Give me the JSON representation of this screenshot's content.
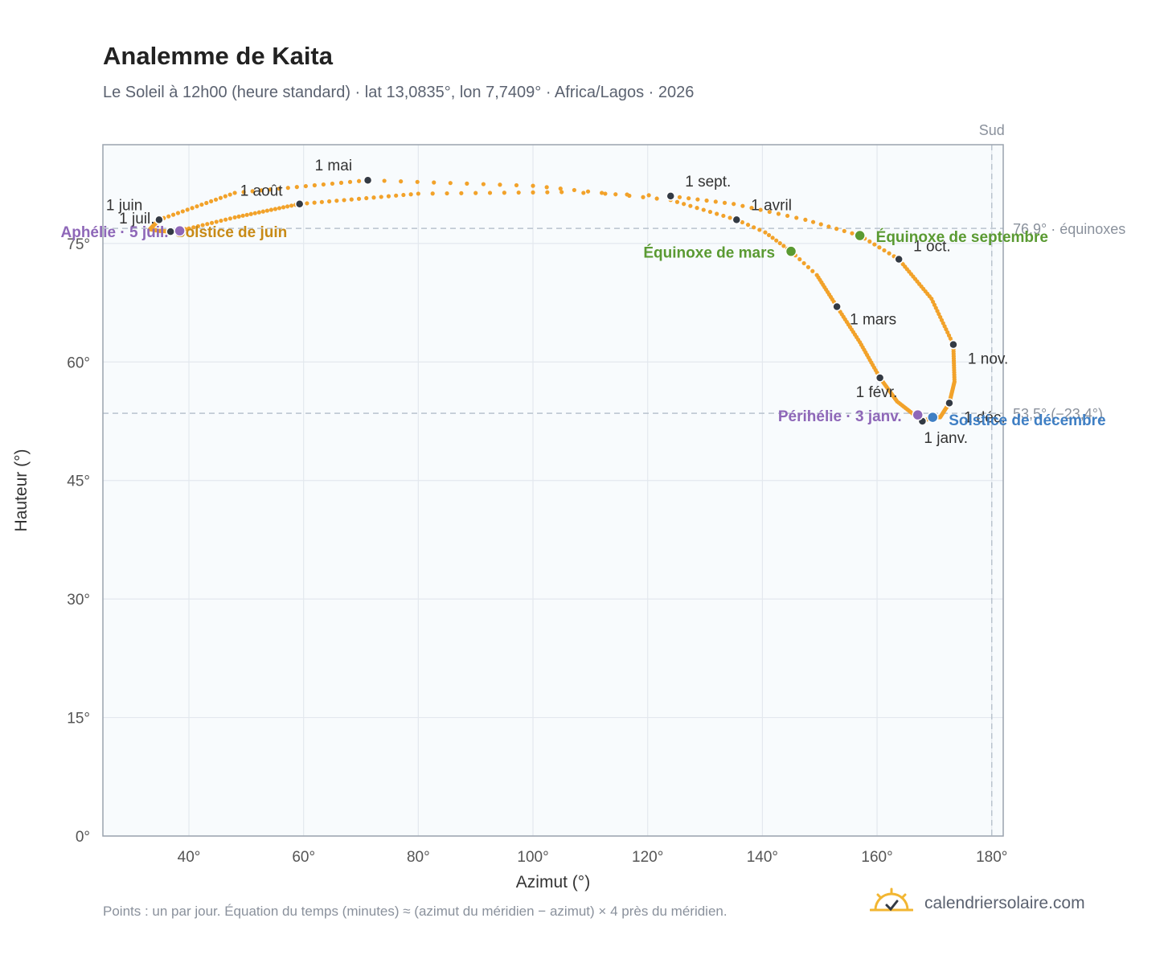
{
  "title": "Analemme de Kaita",
  "subtitle": "Le Soleil à 12h00 (heure standard) · lat 13,0835°, lon 7,7409° · Africa/Lagos · 2026",
  "footnote": "Points : un par jour. Équation du temps (minutes) ≈ (azimut du méridien − azimut) × 4 près du méridien.",
  "brand": {
    "name": "calendriersolaire.com",
    "logo_icon": "sun-check-icon"
  },
  "colors": {
    "curve": "#f2a22a",
    "month_marker": "#333a44",
    "equinox": "#5a9a32",
    "aphelion": "#8e67b8",
    "solstice_june": "#c88a16",
    "solstice_dec": "#3f7fc4",
    "plot_bg": "#f8fbfd",
    "grid": "#e3e8ee",
    "ref_line": "#b9c3ce"
  },
  "chart_data": {
    "type": "scatter",
    "xlabel": "Azimut (°)",
    "ylabel": "Hauteur (°)",
    "xlim": [
      25,
      182
    ],
    "ylim": [
      0,
      87.5
    ],
    "xticks": [
      40,
      60,
      80,
      100,
      120,
      140,
      160,
      180
    ],
    "yticks": [
      0,
      15,
      30,
      45,
      60,
      75
    ],
    "x_tick_labels": [
      "40°",
      "60°",
      "80°",
      "100°",
      "120°",
      "140°",
      "160°",
      "180°"
    ],
    "y_tick_labels": [
      "0°",
      "15°",
      "30°",
      "45°",
      "60°",
      "75°"
    ],
    "grid": true,
    "south_line": {
      "x": 180,
      "label": "Sud"
    },
    "reference_lines": [
      {
        "y": 76.9,
        "label": "76,9° · équinoxes"
      },
      {
        "y": 53.5,
        "label": "53,5° (−23,4°)"
      }
    ],
    "month_markers": [
      {
        "label": "1 janv.",
        "x": 167.9,
        "y": 52.5
      },
      {
        "label": "1 févr.",
        "x": 160.5,
        "y": 58.0
      },
      {
        "label": "1 mars",
        "x": 153.0,
        "y": 67.0
      },
      {
        "label": "1 avril",
        "x": 135.5,
        "y": 78.0
      },
      {
        "label": "1 mai",
        "x": 71.2,
        "y": 83.0
      },
      {
        "label": "1 juin",
        "x": 34.8,
        "y": 78.0
      },
      {
        "label": "1 juil.",
        "x": 36.8,
        "y": 76.5
      },
      {
        "label": "1 août",
        "x": 59.3,
        "y": 80.0
      },
      {
        "label": "1 sept.",
        "x": 124.0,
        "y": 81.0
      },
      {
        "label": "1 oct.",
        "x": 163.8,
        "y": 73.0
      },
      {
        "label": "1 nov.",
        "x": 173.3,
        "y": 62.2
      },
      {
        "label": "1 déc.",
        "x": 172.6,
        "y": 54.8
      }
    ],
    "events": [
      {
        "label": "Équinoxe de mars",
        "kind": "equinox",
        "x": 145.0,
        "y": 74.0
      },
      {
        "label": "Équinoxe de septembre",
        "kind": "equinox",
        "x": 157.0,
        "y": 76.0
      },
      {
        "label": "Solstice de juin",
        "kind": "solstice_june",
        "x": 34.8,
        "y": 76.6
      },
      {
        "label": "Solstice de décembre",
        "kind": "solstice_dec",
        "x": 169.7,
        "y": 53.0
      },
      {
        "label": "Aphélie · 5 juil.",
        "kind": "aphelion",
        "x": 38.4,
        "y": 76.6
      },
      {
        "label": "Périhélie · 3 janv.",
        "kind": "aphelion",
        "x": 167.1,
        "y": 53.3
      }
    ],
    "curve_anchors": [
      [
        167.9,
        52.5
      ],
      [
        163.5,
        55.0
      ],
      [
        160.5,
        58.0
      ],
      [
        157.0,
        62.5
      ],
      [
        153.0,
        67.0
      ],
      [
        149.5,
        71.0
      ],
      [
        145.0,
        74.0
      ],
      [
        140.5,
        76.4
      ],
      [
        135.5,
        78.0
      ],
      [
        124.0,
        80.5
      ],
      [
        100.0,
        82.3
      ],
      [
        71.2,
        83.0
      ],
      [
        48.0,
        81.4
      ],
      [
        34.8,
        78.0
      ],
      [
        33.2,
        76.8
      ],
      [
        34.8,
        76.6
      ],
      [
        36.8,
        76.5
      ],
      [
        40.0,
        76.9
      ],
      [
        48.0,
        78.3
      ],
      [
        59.3,
        80.0
      ],
      [
        80.0,
        81.3
      ],
      [
        105.0,
        81.5
      ],
      [
        124.0,
        81.0
      ],
      [
        135.0,
        80.0
      ],
      [
        147.5,
        78.0
      ],
      [
        157.0,
        76.0
      ],
      [
        163.8,
        73.0
      ],
      [
        169.5,
        68.0
      ],
      [
        173.3,
        62.2
      ],
      [
        173.5,
        57.5
      ],
      [
        172.6,
        54.8
      ],
      [
        171.0,
        53.0
      ],
      [
        169.7,
        53.0
      ],
      [
        167.9,
        52.5
      ]
    ],
    "anchor_days": [
      0,
      15,
      31,
      45,
      59,
      72,
      78,
      85,
      90,
      100,
      110,
      120,
      135,
      151,
      166,
      172,
      181,
      186,
      196,
      212,
      228,
      238,
      243,
      250,
      258,
      265,
      273,
      289,
      304,
      320,
      334,
      348,
      355,
      365
    ]
  }
}
